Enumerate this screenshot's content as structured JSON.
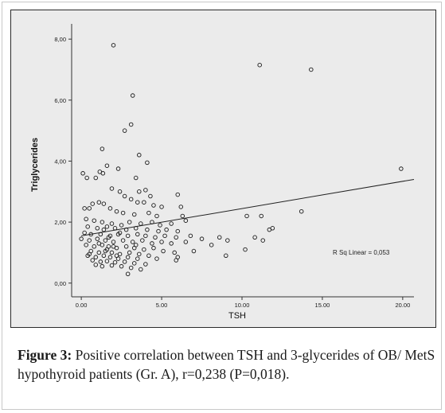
{
  "chart_data": {
    "type": "scatter",
    "xlabel": "TSH",
    "ylabel": "Triglycerides",
    "xlim": [
      -0.6,
      20.7
    ],
    "ylim": [
      -0.45,
      8.5
    ],
    "x_ticks": [
      0,
      5,
      10,
      15,
      20
    ],
    "x_tick_labels": [
      "0.00",
      "5.00",
      "10.00",
      "15.00",
      "20.00"
    ],
    "y_ticks": [
      0,
      2,
      4,
      6,
      8
    ],
    "y_tick_labels": [
      "0,00",
      "2,00",
      "4,00",
      "6,00",
      "8,00"
    ],
    "annotation": "R Sq Linear = 0,053",
    "fit_line": {
      "x": [
        0,
        20.7
      ],
      "y": [
        1.55,
        3.4
      ]
    },
    "points": [
      [
        2.0,
        7.8
      ],
      [
        11.1,
        7.15
      ],
      [
        14.3,
        7.0
      ],
      [
        3.2,
        6.15
      ],
      [
        3.1,
        5.2
      ],
      [
        2.7,
        5.0
      ],
      [
        1.3,
        4.4
      ],
      [
        3.6,
        4.2
      ],
      [
        4.1,
        3.95
      ],
      [
        1.6,
        3.85
      ],
      [
        1.15,
        3.65
      ],
      [
        1.35,
        3.6
      ],
      [
        2.3,
        3.75
      ],
      [
        0.1,
        3.6
      ],
      [
        0.35,
        3.45
      ],
      [
        0.9,
        3.45
      ],
      [
        3.4,
        3.45
      ],
      [
        19.9,
        3.75
      ],
      [
        1.9,
        3.1
      ],
      [
        2.4,
        3.0
      ],
      [
        3.6,
        3.0
      ],
      [
        4.0,
        3.05
      ],
      [
        2.7,
        2.85
      ],
      [
        4.3,
        2.85
      ],
      [
        3.1,
        2.75
      ],
      [
        3.5,
        2.65
      ],
      [
        3.9,
        2.65
      ],
      [
        1.1,
        2.65
      ],
      [
        1.4,
        2.6
      ],
      [
        0.7,
        2.6
      ],
      [
        0.2,
        2.45
      ],
      [
        0.5,
        2.45
      ],
      [
        4.5,
        2.55
      ],
      [
        5.0,
        2.5
      ],
      [
        6.0,
        2.9
      ],
      [
        6.2,
        2.5
      ],
      [
        1.8,
        2.45
      ],
      [
        2.2,
        2.35
      ],
      [
        2.6,
        2.3
      ],
      [
        3.3,
        2.25
      ],
      [
        4.2,
        2.3
      ],
      [
        4.7,
        2.2
      ],
      [
        6.3,
        2.2
      ],
      [
        10.3,
        2.2
      ],
      [
        11.2,
        2.2
      ],
      [
        13.7,
        2.35
      ],
      [
        0.3,
        2.1
      ],
      [
        0.8,
        2.05
      ],
      [
        1.3,
        2.0
      ],
      [
        1.9,
        1.95
      ],
      [
        2.5,
        1.9
      ],
      [
        3.0,
        2.0
      ],
      [
        3.7,
        1.95
      ],
      [
        4.4,
        2.0
      ],
      [
        4.9,
        1.9
      ],
      [
        5.6,
        1.95
      ],
      [
        6.5,
        2.05
      ],
      [
        0.4,
        1.85
      ],
      [
        1.0,
        1.8
      ],
      [
        1.6,
        1.85
      ],
      [
        2.1,
        1.8
      ],
      [
        2.8,
        1.75
      ],
      [
        3.4,
        1.8
      ],
      [
        4.1,
        1.75
      ],
      [
        4.8,
        1.7
      ],
      [
        5.3,
        1.75
      ],
      [
        6.0,
        1.7
      ],
      [
        11.7,
        1.75
      ],
      [
        11.9,
        1.8
      ],
      [
        0.2,
        1.65
      ],
      [
        0.6,
        1.6
      ],
      [
        1.2,
        1.6
      ],
      [
        1.8,
        1.55
      ],
      [
        2.3,
        1.6
      ],
      [
        2.9,
        1.55
      ],
      [
        3.5,
        1.6
      ],
      [
        4.0,
        1.55
      ],
      [
        4.6,
        1.5
      ],
      [
        5.2,
        1.55
      ],
      [
        5.9,
        1.5
      ],
      [
        6.8,
        1.55
      ],
      [
        7.5,
        1.45
      ],
      [
        8.6,
        1.5
      ],
      [
        9.1,
        1.4
      ],
      [
        10.8,
        1.5
      ],
      [
        0.0,
        1.45
      ],
      [
        0.5,
        1.4
      ],
      [
        1.0,
        1.45
      ],
      [
        1.5,
        1.4
      ],
      [
        2.0,
        1.35
      ],
      [
        2.6,
        1.4
      ],
      [
        3.2,
        1.35
      ],
      [
        3.8,
        1.4
      ],
      [
        4.4,
        1.3
      ],
      [
        5.0,
        1.35
      ],
      [
        5.6,
        1.3
      ],
      [
        6.5,
        1.35
      ],
      [
        8.1,
        1.25
      ],
      [
        10.2,
        1.1
      ],
      [
        11.3,
        1.4
      ],
      [
        0.3,
        1.25
      ],
      [
        0.8,
        1.2
      ],
      [
        1.3,
        1.25
      ],
      [
        1.7,
        1.2
      ],
      [
        2.2,
        1.15
      ],
      [
        2.8,
        1.2
      ],
      [
        3.3,
        1.15
      ],
      [
        3.9,
        1.1
      ],
      [
        4.5,
        1.15
      ],
      [
        5.1,
        1.05
      ],
      [
        5.8,
        1.0
      ],
      [
        7.0,
        1.05
      ],
      [
        0.6,
        1.05
      ],
      [
        1.1,
        1.0
      ],
      [
        1.5,
        1.05
      ],
      [
        1.9,
        1.0
      ],
      [
        2.4,
        0.95
      ],
      [
        3.0,
        1.0
      ],
      [
        3.6,
        0.95
      ],
      [
        4.2,
        0.9
      ],
      [
        0.4,
        0.9
      ],
      [
        0.9,
        0.85
      ],
      [
        1.4,
        0.9
      ],
      [
        1.8,
        0.85
      ],
      [
        2.3,
        0.8
      ],
      [
        2.9,
        0.85
      ],
      [
        3.5,
        0.8
      ],
      [
        4.7,
        0.8
      ],
      [
        6.0,
        0.85
      ],
      [
        0.7,
        0.75
      ],
      [
        1.2,
        0.7
      ],
      [
        1.6,
        0.72
      ],
      [
        2.1,
        0.68
      ],
      [
        2.7,
        0.7
      ],
      [
        3.3,
        0.65
      ],
      [
        4.0,
        0.62
      ],
      [
        5.9,
        0.75
      ],
      [
        9.0,
        0.9
      ],
      [
        0.9,
        0.6
      ],
      [
        1.3,
        0.55
      ],
      [
        1.9,
        0.58
      ],
      [
        2.5,
        0.55
      ],
      [
        3.1,
        0.5
      ],
      [
        3.7,
        0.45
      ],
      [
        2.9,
        0.3
      ],
      [
        0.5,
        0.95
      ],
      [
        1.7,
        1.5
      ],
      [
        2.0,
        1.2
      ],
      [
        1.4,
        1.75
      ],
      [
        2.4,
        1.65
      ],
      [
        1.1,
        1.3
      ],
      [
        1.6,
        1.1
      ],
      [
        2.2,
        0.9
      ],
      [
        3.4,
        1.25
      ]
    ]
  },
  "caption": {
    "label": "Figure 3:",
    "text": " Positive correlation between TSH and 3-glycerides of OB/ MetS hypothyroid patients (Gr. A), r=0,238 (P=0,018)."
  }
}
